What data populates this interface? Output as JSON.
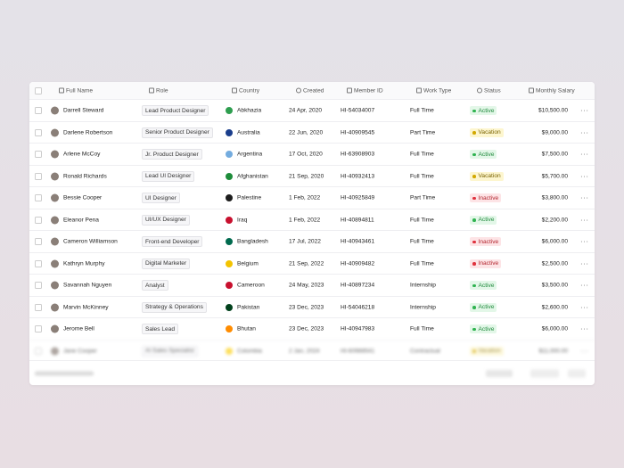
{
  "table": {
    "columns": [
      "Full Name",
      "Role",
      "Country",
      "Created",
      "Member ID",
      "Work Type",
      "Status",
      "Monthly Salary"
    ],
    "status_colors": {
      "Active": [
        "#e3f7e8",
        "#1f8a3c",
        "#2fb350"
      ],
      "Vacation": [
        "#fdf6cf",
        "#7a6300",
        "#d2a800"
      ],
      "Inactive": [
        "#fde4e6",
        "#b3262f",
        "#e0313d"
      ]
    },
    "rows": [
      [
        "Darrell Steward",
        "Lead Product Designer",
        "Abkhazia",
        "24 Apr, 2020",
        "HI-54034007",
        "Full Time",
        "Active",
        "$10,500.00"
      ],
      [
        "Darlene Robertson",
        "Senior Product Designer",
        "Australia",
        "22 Jun, 2020",
        "HI-40909545",
        "Part Time",
        "Vacation",
        "$9,000.00"
      ],
      [
        "Arlene McCoy",
        "Jr. Product Designer",
        "Argentina",
        "17 Oct, 2020",
        "HI-63908903",
        "Full Time",
        "Active",
        "$7,500.00"
      ],
      [
        "Ronald Richards",
        "Lead UI Designer",
        "Afghanistan",
        "21 Sep, 2020",
        "HI-40932413",
        "Full Time",
        "Vacation",
        "$5,700.00"
      ],
      [
        "Bessie Cooper",
        "UI Designer",
        "Palestine",
        "1 Feb, 2022",
        "HI-40925849",
        "Part Time",
        "Inactive",
        "$3,800.00"
      ],
      [
        "Eleanor Pena",
        "UI/UX Designer",
        "Iraq",
        "1 Feb, 2022",
        "HI-40894811",
        "Full Time",
        "Active",
        "$2,200.00"
      ],
      [
        "Cameron Williamson",
        "Front-end Developer",
        "Bangladesh",
        "17 Jul, 2022",
        "HI-40943461",
        "Full Time",
        "Inactive",
        "$6,000.00"
      ],
      [
        "Kathryn Murphy",
        "Digital Marketer",
        "Belgium",
        "21 Sep, 2022",
        "HI-40909482",
        "Full Time",
        "Inactive",
        "$2,500.00"
      ],
      [
        "Savannah Nguyen",
        "Analyst",
        "Cameroon",
        "24 May, 2023",
        "HI-40897234",
        "Internship",
        "Active",
        "$3,500.00"
      ],
      [
        "Marvin McKinney",
        "Strategy & Operations",
        "Pakistan",
        "23 Dec, 2023",
        "HI-54046218",
        "Internship",
        "Active",
        "$2,600.00"
      ],
      [
        "Jerome Bell",
        "Sales Lead",
        "Bhutan",
        "23 Dec, 2023",
        "HI-40947983",
        "Full Time",
        "Active",
        "$6,000.00"
      ],
      [
        "Jane Cooper",
        "AI Sales Specialist",
        "Colombia",
        "2 Jan, 2024",
        "HI-60988541",
        "Contractual",
        "Vacation",
        "$11,000.00"
      ]
    ],
    "flag_colors": [
      "#2e9e4f",
      "#1a3e8c",
      "#74acdf",
      "#1d8c3a",
      "#1d1d1d",
      "#c8102e",
      "#006a4e",
      "#f3c300",
      "#c8102e",
      "#01411c",
      "#ff8c00",
      "#fcd116"
    ],
    "blurred_rows": [
      11
    ]
  }
}
